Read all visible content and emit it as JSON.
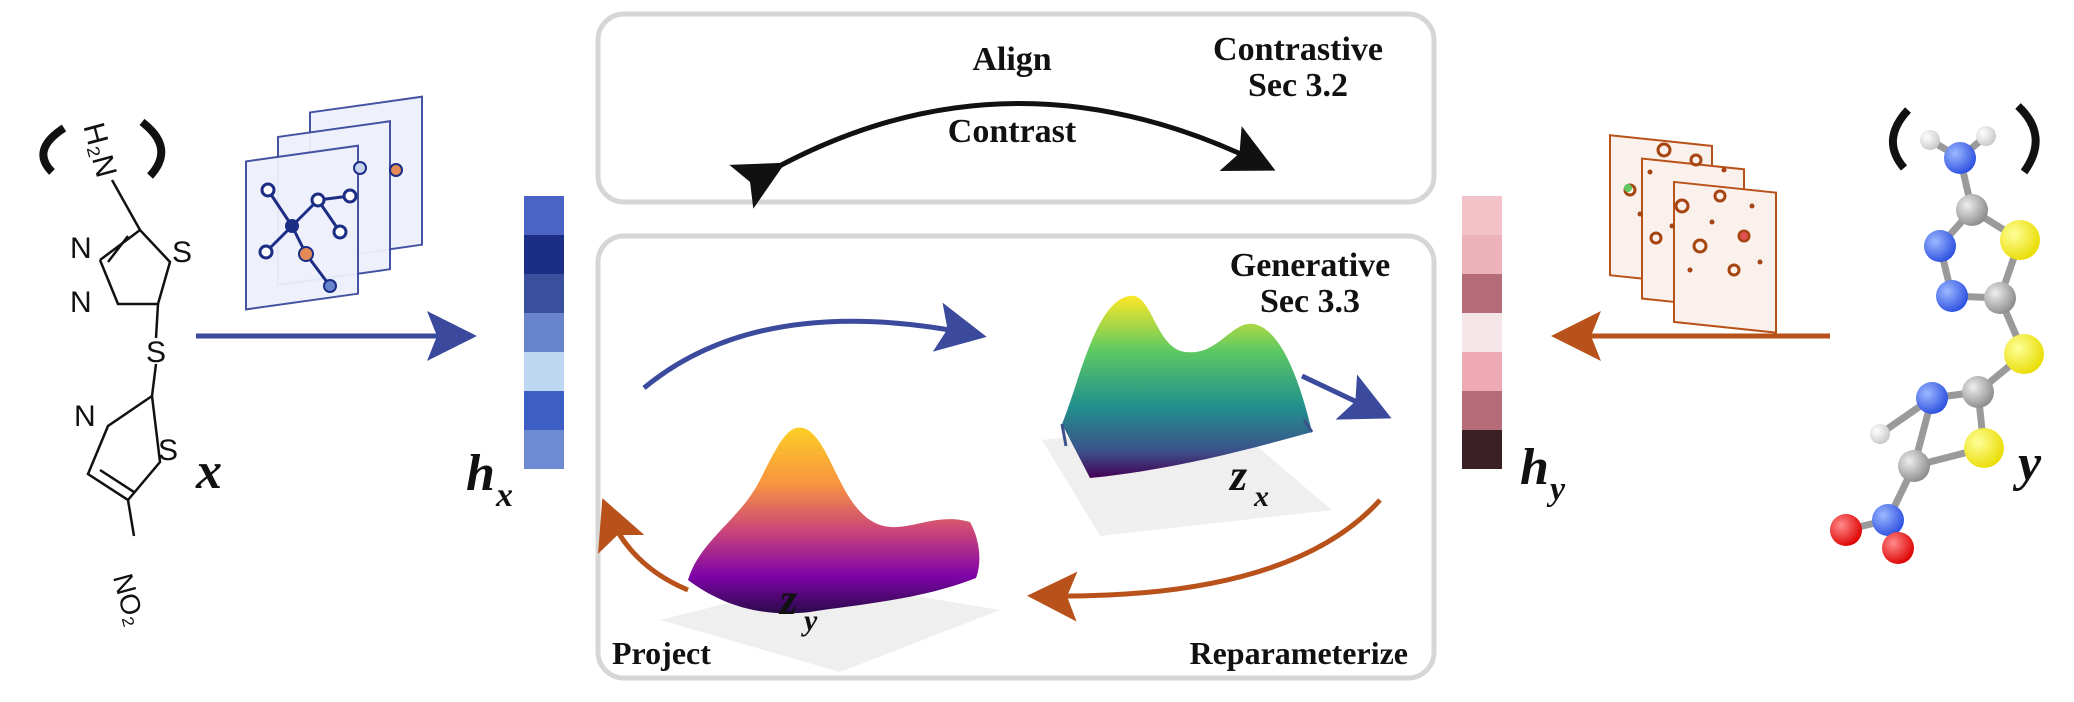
{
  "panels": {
    "contrastive": {
      "title_line1": "Contrastive",
      "title_line2": "Sec 3.2",
      "align_label": "Align",
      "contrast_label": "Contrast"
    },
    "generative": {
      "title_line1": "Generative",
      "title_line2": "Sec 3.3",
      "project_label": "Project",
      "reparameterize_label": "Reparameterize",
      "zx_base": "z",
      "zx_sub": "x",
      "zy_base": "z",
      "zy_sub": "y"
    }
  },
  "inputs": {
    "x_label": "x",
    "y_label": "y",
    "hx_base": "h",
    "hx_sub": "x",
    "hy_base": "h",
    "hy_sub": "y"
  },
  "molecule_2d": {
    "nh2": "H₂N",
    "n1": "N",
    "n2": "N",
    "s1": "S",
    "s_link": "S",
    "n3": "N",
    "s2": "S",
    "no2": "NO₂"
  },
  "embedding_hx_colors": [
    "#4a63c4",
    "#1c2d85",
    "#3a4f9e",
    "#6784cc",
    "#bcd7ef",
    "#3d5fc5",
    "#6d8ad3"
  ],
  "embedding_hy_colors": [
    "#f2c2c8",
    "#eeb2ba",
    "#b46c78",
    "#f4e6e8",
    "#eeaab4",
    "#b46c78",
    "#3a1f24"
  ],
  "colors": {
    "encoder_blue": "#3b4a9c",
    "decoder_orange": "#b8521a",
    "panel_border": "#d6d6d6"
  },
  "icons": {
    "graph_stack": "graph-layers-icon",
    "point_cloud_stack": "point-cloud-layers-icon",
    "molecule_3d": "ball-and-stick-molecule-icon"
  }
}
